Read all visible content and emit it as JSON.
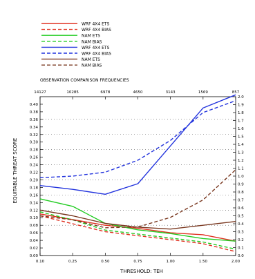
{
  "chart_data": {
    "type": "line",
    "title": "",
    "xlabel": "THRESHOLD: TEH",
    "ylabel": "EQUITABLE THREAT SCORE",
    "y2label": "",
    "top_axis_label": "OBSERVATION COMPARISON FREQUENCIES",
    "x": [
      0.1,
      0.25,
      0.5,
      0.75,
      1.0,
      1.5,
      2.0
    ],
    "x_tick_labels": [
      "0.10",
      "0.25",
      "0.50",
      "0.75",
      "1.00",
      "1.50",
      "2.00"
    ],
    "top_tick_labels": [
      "14127",
      "10285",
      "6978",
      "4650",
      "3143",
      "1569",
      "857"
    ],
    "ylim": [
      0.0,
      0.42
    ],
    "y_ticks": [
      0.0,
      0.02,
      0.04,
      0.06,
      0.08,
      0.1,
      0.12,
      0.14,
      0.16,
      0.18,
      0.2,
      0.22,
      0.24,
      0.26,
      0.28,
      0.3,
      0.32,
      0.34,
      0.36,
      0.38,
      0.4
    ],
    "y_tick_labels": [
      "0.00",
      "0.02",
      "0.04",
      "0.06",
      "0.08",
      "0.10",
      "0.12",
      "0.14",
      "0.16",
      "0.18",
      "0.20",
      "0.22",
      "0.24",
      "0.26",
      "0.28",
      "0.30",
      "0.32",
      "0.34",
      "0.36",
      "0.38",
      "0.40"
    ],
    "y2lim": [
      0.0,
      2.0
    ],
    "y2_ticks": [
      0.0,
      0.1,
      0.2,
      0.3,
      0.4,
      0.5,
      0.6,
      0.7,
      0.8,
      0.9,
      1.0,
      1.1,
      1.2,
      1.3,
      1.4,
      1.5,
      1.6,
      1.7,
      1.8,
      1.9,
      2.0
    ],
    "y2_tick_labels": [
      "0.0",
      "0.1",
      "0.2",
      "0.3",
      "0.4",
      "0.5",
      "0.6",
      "0.7",
      "0.8",
      "0.9",
      "1.0",
      "1.1",
      "1.2",
      "1.3",
      "1.4",
      "1.5",
      "1.6",
      "1.7",
      "1.8",
      "1.9",
      "2.0"
    ],
    "grid_y": [
      0.08,
      0.12,
      0.16,
      0.2,
      0.24,
      0.28,
      0.32,
      0.36
    ],
    "legend_placement": "top",
    "series": [
      {
        "name": "WRF 4X4 ETS",
        "color": "#e03020",
        "dash": "solid",
        "axis": "left",
        "values": [
          0.11,
          0.095,
          0.08,
          0.072,
          0.06,
          0.055,
          0.038
        ]
      },
      {
        "name": "WRF 4X4 BIAS",
        "color": "#e03020",
        "dash": "dashed",
        "axis": "right",
        "values": [
          0.5,
          0.4,
          0.3,
          0.25,
          0.2,
          0.15,
          0.05
        ]
      },
      {
        "name": "NAM ETS",
        "color": "#22cc22",
        "dash": "solid",
        "axis": "left",
        "values": [
          0.15,
          0.13,
          0.085,
          0.068,
          0.058,
          0.045,
          0.038
        ]
      },
      {
        "name": "NAM BIAS",
        "color": "#22cc22",
        "dash": "dashed",
        "axis": "right",
        "values": [
          0.55,
          0.45,
          0.32,
          0.27,
          0.22,
          0.17,
          0.08
        ]
      },
      {
        "name": "WRF 4X4 ETS",
        "color": "#2233dd",
        "dash": "solid",
        "axis": "left",
        "values": [
          0.185,
          0.175,
          0.162,
          0.19,
          0.29,
          0.39,
          0.425
        ]
      },
      {
        "name": "WRF 4X4 BIAS",
        "color": "#2233dd",
        "dash": "dashed",
        "axis": "right",
        "values": [
          0.98,
          1.0,
          1.05,
          1.2,
          1.45,
          1.8,
          1.95
        ]
      },
      {
        "name": "NAM ETS",
        "color": "#7a3820",
        "dash": "solid",
        "axis": "left",
        "values": [
          0.12,
          0.105,
          0.085,
          0.075,
          0.07,
          0.08,
          0.09
        ]
      },
      {
        "name": "NAM BIAS",
        "color": "#7a3820",
        "dash": "dashed",
        "axis": "right",
        "values": [
          0.5,
          0.45,
          0.35,
          0.36,
          0.48,
          0.7,
          1.08
        ]
      }
    ]
  }
}
